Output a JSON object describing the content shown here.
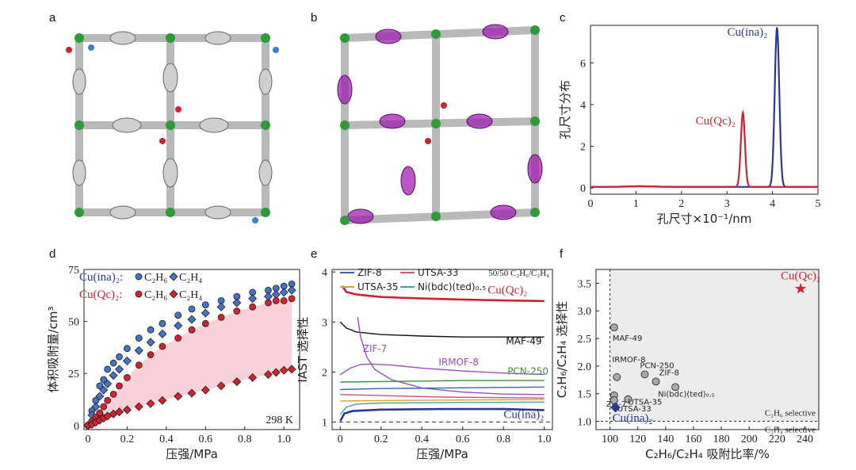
{
  "panels": {
    "a": {
      "label": "a"
    },
    "b": {
      "label": "b"
    },
    "c": {
      "label": "c"
    },
    "d": {
      "label": "d"
    },
    "e": {
      "label": "e"
    },
    "f": {
      "label": "f"
    }
  },
  "colors": {
    "red": "#d0222f",
    "blue": "#2b3890",
    "green": "#2e9a3a",
    "pinkFill": "#f8d0d8",
    "purple": "#a020b0",
    "grey": "#8a8a8a"
  },
  "chart_data": [
    {
      "id": "c",
      "type": "line",
      "xlabel": "孔尺寸×10⁻¹/nm",
      "ylabel": "孔尺寸分布",
      "xlim": [
        0,
        5
      ],
      "ylim": [
        -0.3,
        7.8
      ],
      "xticks": [
        "0",
        "1",
        "2",
        "3",
        "4",
        "5"
      ],
      "yticks": [
        "0",
        "2",
        "4",
        "6"
      ],
      "series": [
        {
          "name": "Cu(ina)₂",
          "color": "#2b3890",
          "peak_x": 4.1,
          "peak_y": 7.65,
          "width": 0.05
        },
        {
          "name": "Cu(Qc)₂",
          "color": "#d0222f",
          "peak_x": 3.35,
          "peak_y": 3.55,
          "width": 0.045
        }
      ],
      "annotations": {
        "blue": "Cu(ina)₂",
        "red": "Cu(Qc)₂"
      }
    },
    {
      "id": "d",
      "type": "scatter",
      "xlabel": "压强/MPa",
      "ylabel": "体积吸附量/cm³",
      "xlim": [
        -0.02,
        1.08
      ],
      "ylim": [
        -2,
        75
      ],
      "xticks": [
        "0",
        "0.2",
        "0.4",
        "0.6",
        "0.8",
        "1.0"
      ],
      "yticks": [
        "0",
        "25",
        "50",
        "75"
      ],
      "legend": {
        "row1_name": "Cu(ina)₂:",
        "row2_name": "Cu(Qc)₂:",
        "c2h6": "C₂H₆",
        "c2h4": "C₂H₄"
      },
      "temperature": "298 K",
      "x": [
        0.0,
        0.02,
        0.04,
        0.06,
        0.08,
        0.1,
        0.13,
        0.16,
        0.2,
        0.26,
        0.32,
        0.38,
        0.46,
        0.53,
        0.6,
        0.68,
        0.76,
        0.84,
        0.92,
        0.96,
        1.0,
        1.04
      ],
      "series": [
        {
          "name": "Cu(ina)₂ C₂H₆",
          "marker": "circle",
          "color": "#4472c4",
          "values": [
            0,
            7,
            12,
            19,
            22,
            27,
            30,
            33,
            37,
            42,
            46,
            49,
            53,
            56,
            58,
            60,
            62,
            64,
            65,
            66,
            67,
            68
          ]
        },
        {
          "name": "Cu(ina)₂ C₂H₄",
          "marker": "diamond",
          "color": "#4472c4",
          "values": [
            0,
            5,
            9,
            14,
            17,
            20,
            24,
            27,
            31,
            36,
            40,
            44,
            48,
            51,
            54,
            57,
            59,
            61,
            62,
            63,
            64,
            65
          ]
        },
        {
          "name": "Cu(Qc)₂ C₂H₆",
          "marker": "circle",
          "color": "#d0222f",
          "values": [
            0,
            2,
            4,
            6,
            9,
            12,
            15,
            19,
            23,
            29,
            34,
            38,
            42,
            46,
            49,
            52,
            55,
            57,
            59,
            60,
            60,
            61
          ]
        },
        {
          "name": "Cu(Qc)₂ C₂H₄",
          "marker": "diamond",
          "color": "#d0222f",
          "values": [
            0,
            0.5,
            1.5,
            2.5,
            3.5,
            4.5,
            5.5,
            6.5,
            7.5,
            9,
            10.5,
            12,
            14,
            15.5,
            17,
            19,
            21,
            23,
            24.5,
            25.5,
            26.5,
            27
          ]
        }
      ]
    },
    {
      "id": "e",
      "type": "line",
      "xlabel": "压强/MPa",
      "ylabel": "IAST 选择性",
      "xlim": [
        -0.04,
        1.04
      ],
      "ylim": [
        0.85,
        4.05
      ],
      "xticks": [
        "0",
        "0.2",
        "0.4",
        "0.6",
        "0.8",
        "1.0"
      ],
      "yticks": [
        "1",
        "2",
        "3",
        "4"
      ],
      "mixture": "50/50 C₂H₆/C₂H₄",
      "legend": [
        "ZIF-8",
        "UTSA-33",
        "UTSA-35",
        "Ni(bdc)(ted)₀.₅"
      ],
      "series": [
        {
          "name": "Cu(Qc)₂",
          "color": "#d0222f",
          "points": [
            [
              0.01,
              3.72
            ],
            [
              0.03,
              3.6
            ],
            [
              0.08,
              3.55
            ],
            [
              0.2,
              3.5
            ],
            [
              0.4,
              3.47
            ],
            [
              0.6,
              3.45
            ],
            [
              0.8,
              3.43
            ],
            [
              1.0,
              3.42
            ]
          ]
        },
        {
          "name": "MAF-49",
          "color": "#111111",
          "points": [
            [
              0.0,
              3.0
            ],
            [
              0.03,
              2.88
            ],
            [
              0.08,
              2.8
            ],
            [
              0.2,
              2.75
            ],
            [
              0.4,
              2.72
            ],
            [
              0.6,
              2.7
            ],
            [
              0.8,
              2.7
            ],
            [
              1.0,
              2.7
            ]
          ]
        },
        {
          "name": "ZIF-7",
          "color": "#9c4fc0",
          "points": [
            [
              0.085,
              3.1
            ],
            [
              0.1,
              2.7
            ],
            [
              0.13,
              2.3
            ],
            [
              0.17,
              2.05
            ],
            [
              0.25,
              1.85
            ],
            [
              0.4,
              1.68
            ],
            [
              0.6,
              1.6
            ],
            [
              0.8,
              1.56
            ],
            [
              1.0,
              1.55
            ]
          ]
        },
        {
          "name": "IRMOF-8",
          "color": "#9c4fc0",
          "points": [
            [
              0.0,
              1.95
            ],
            [
              0.05,
              2.08
            ],
            [
              0.1,
              2.15
            ],
            [
              0.15,
              2.16
            ],
            [
              0.25,
              2.14
            ],
            [
              0.4,
              2.08
            ],
            [
              0.6,
              2.02
            ],
            [
              0.8,
              1.98
            ],
            [
              1.0,
              1.95
            ]
          ]
        },
        {
          "name": "PCN-250",
          "color": "#3b8f3b",
          "points": [
            [
              0.0,
              1.8
            ],
            [
              0.2,
              1.81
            ],
            [
              0.4,
              1.82
            ],
            [
              0.6,
              1.83
            ],
            [
              0.8,
              1.83
            ],
            [
              1.0,
              1.83
            ]
          ]
        },
        {
          "name": "ZIF-8",
          "color": "#3a66b0",
          "points": [
            [
              0.0,
              1.65
            ],
            [
              0.2,
              1.67
            ],
            [
              0.5,
              1.68
            ],
            [
              1.0,
              1.7
            ]
          ]
        },
        {
          "name": "UTSA-33",
          "color": "#d7507a",
          "points": [
            [
              0.0,
              1.55
            ],
            [
              0.2,
              1.53
            ],
            [
              0.5,
              1.5
            ],
            [
              1.0,
              1.48
            ]
          ]
        },
        {
          "name": "UTSA-35",
          "color": "#d9a23a",
          "points": [
            [
              0.0,
              1.42
            ],
            [
              0.2,
              1.43
            ],
            [
              0.5,
              1.44
            ],
            [
              1.0,
              1.45
            ]
          ]
        },
        {
          "name": "Ni(bdc)(ted)₀.₅",
          "color": "#3aa8a0",
          "points": [
            [
              0.0,
              1.15
            ],
            [
              0.03,
              1.3
            ],
            [
              0.08,
              1.36
            ],
            [
              0.2,
              1.38
            ],
            [
              0.5,
              1.39
            ],
            [
              1.0,
              1.4
            ]
          ]
        },
        {
          "name": "Cu(ina)₂",
          "color": "#2b3890",
          "points": [
            [
              0.0,
              1.02
            ],
            [
              0.02,
              1.17
            ],
            [
              0.06,
              1.22
            ],
            [
              0.2,
              1.25
            ],
            [
              0.5,
              1.26
            ],
            [
              0.8,
              1.26
            ],
            [
              1.0,
              1.24
            ]
          ]
        }
      ],
      "labels": {
        "cuqc": "Cu(Qc)₂",
        "maf49": "MAF-49",
        "zif7": "ZIF-7",
        "irmof8": "IRMOF-8",
        "pcn250": "PCN-250",
        "cuina": "Cu(ina)₂"
      }
    },
    {
      "id": "f",
      "type": "scatter",
      "xlabel": "C₂H₆/C₂H₄ 吸附比率/%",
      "ylabel": "C₂H₆/C₂H₄ 选择性",
      "xlim": [
        90,
        250
      ],
      "ylim": [
        0.85,
        3.75
      ],
      "xticks": [
        "100",
        "120",
        "140",
        "160",
        "180",
        "200",
        "220",
        "240"
      ],
      "yticks": [
        "1.0",
        "1.5",
        "2.0",
        "2.5",
        "3.0",
        "3.5"
      ],
      "region_labels": {
        "above": "C₂H₆ selective",
        "below": "C₂H₄ selective"
      },
      "points": [
        {
          "name": "Cu(Qc)₂",
          "x": 237,
          "y": 3.4,
          "marker": "star",
          "color": "#d0222f"
        },
        {
          "name": "MAF-49",
          "x": 103,
          "y": 2.7,
          "marker": "circle",
          "color": "#999999"
        },
        {
          "name": "IRMOF-8",
          "x": 105,
          "y": 1.8,
          "marker": "circle",
          "color": "#999999"
        },
        {
          "name": "ZIF-7",
          "x": 103,
          "y": 1.47,
          "marker": "circle",
          "color": "#999999"
        },
        {
          "name": "PCN-250",
          "x": 125,
          "y": 1.85,
          "marker": "circle",
          "color": "#999999"
        },
        {
          "name": "ZIF-8",
          "x": 133,
          "y": 1.72,
          "marker": "circle",
          "color": "#999999"
        },
        {
          "name": "Ni(bdc)(ted)₀.₅",
          "x": 147,
          "y": 1.62,
          "marker": "circle",
          "color": "#999999"
        },
        {
          "name": "UTSA-35",
          "x": 113,
          "y": 1.4,
          "marker": "circle",
          "color": "#999999"
        },
        {
          "name": "UTSA-33",
          "x": 103,
          "y": 1.38,
          "marker": "circle",
          "color": "#999999"
        },
        {
          "name": "Cu(ina)₂",
          "x": 104,
          "y": 1.25,
          "marker": "diamond",
          "color": "#2b3890"
        }
      ]
    }
  ]
}
